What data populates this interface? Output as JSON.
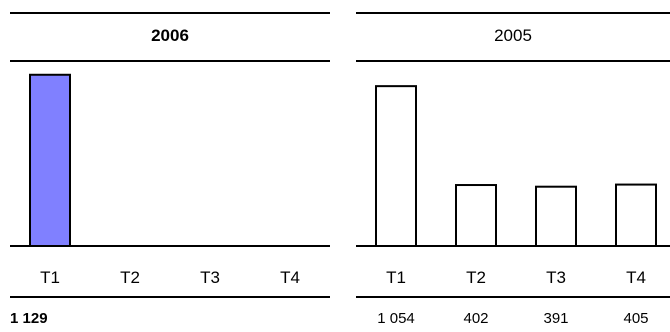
{
  "chart_data": [
    {
      "type": "bar",
      "title": "2006",
      "categories": [
        "T1",
        "T2",
        "T3",
        "T4"
      ],
      "values": [
        1129,
        null,
        null,
        null
      ],
      "value_labels": [
        "1 129",
        "",
        "",
        ""
      ],
      "ylim": [
        0,
        1200
      ],
      "bar_fill": "#8080ff",
      "bar_stroke": "#000000",
      "emphasis": "bold"
    },
    {
      "type": "bar",
      "title": "2005",
      "categories": [
        "T1",
        "T2",
        "T3",
        "T4"
      ],
      "values": [
        1054,
        402,
        391,
        405
      ],
      "value_labels": [
        "1 054",
        "402",
        "391",
        "405"
      ],
      "ylim": [
        0,
        1200
      ],
      "bar_fill": "#ffffff",
      "bar_stroke": "#000000",
      "emphasis": "normal"
    }
  ]
}
